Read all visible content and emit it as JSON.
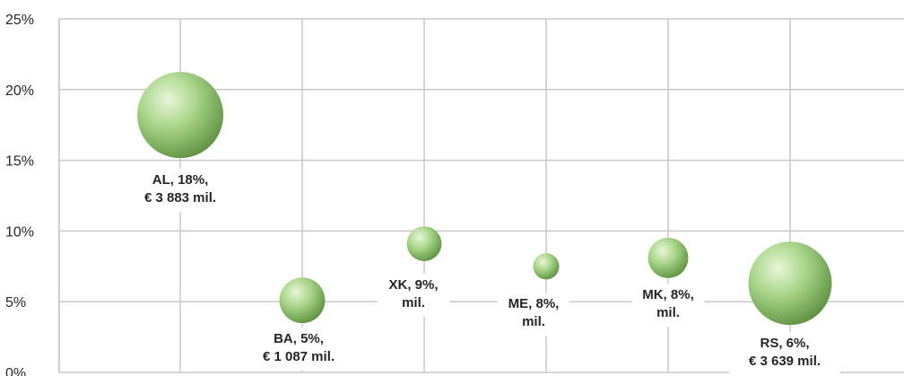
{
  "chart_data": {
    "type": "bubble",
    "y_axis": {
      "min": 0,
      "max": 25,
      "ticks": [
        {
          "value": 0,
          "label": "0%"
        },
        {
          "value": 5,
          "label": "5%"
        },
        {
          "value": 10,
          "label": "10%"
        },
        {
          "value": 15,
          "label": "15%"
        },
        {
          "value": 20,
          "label": "20%"
        },
        {
          "value": 25,
          "label": "25%"
        }
      ]
    },
    "grid": true,
    "colors": {
      "bubble_light": "#e9f6d9",
      "bubble_mid": "#a9d68a",
      "bubble_dark": "#5f9341",
      "grid": "#c8c8c8",
      "axis": "#bfbfbf"
    },
    "points": [
      {
        "code": "AL",
        "y": 18.2,
        "size": 3883,
        "label_lines": [
          "AL, 18%,",
          "€ 3 883 mil."
        ]
      },
      {
        "code": "BA",
        "y": 5.1,
        "size": 1087,
        "label_lines": [
          "BA, 5%,",
          "€ 1 087 mil."
        ]
      },
      {
        "code": "XK",
        "y": 9.1,
        "size": 633,
        "label_lines": [
          "XK, 9%,",
          "mil."
        ]
      },
      {
        "code": "ME",
        "y": 7.5,
        "size": 355,
        "label_lines": [
          "ME, 8%,",
          "mil."
        ]
      },
      {
        "code": "MK",
        "y": 8.1,
        "size": 849,
        "label_lines": [
          "MK, 8%,",
          "mil."
        ]
      },
      {
        "code": "RS",
        "y": 6.3,
        "size": 3639,
        "label_lines": [
          "RS, 6%,",
          "€ 3 639 mil."
        ]
      }
    ]
  }
}
